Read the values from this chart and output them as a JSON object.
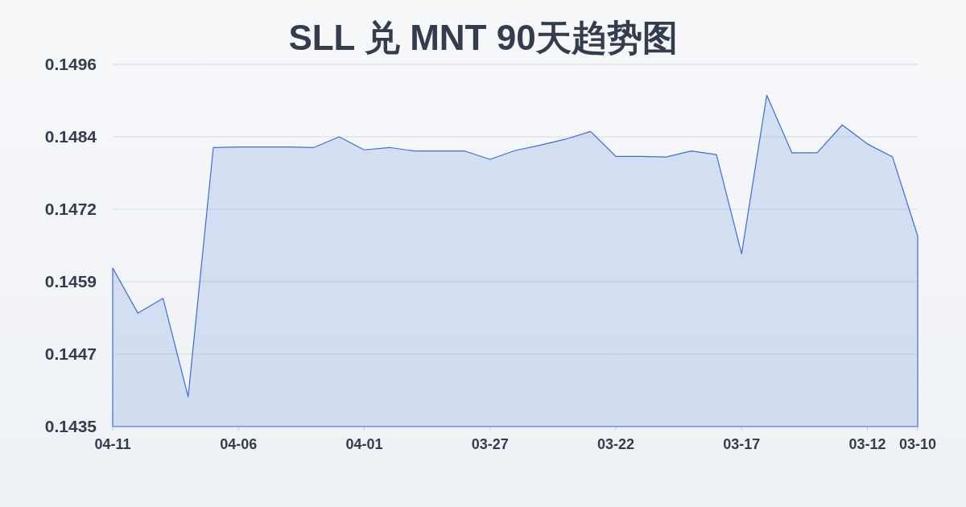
{
  "chart_data": {
    "type": "area",
    "title": "SLL 兑 MNT 90天趋势图",
    "categories": [
      "04-11",
      null,
      null,
      null,
      null,
      "04-06",
      null,
      null,
      null,
      null,
      "04-01",
      null,
      null,
      null,
      null,
      "03-27",
      null,
      null,
      null,
      null,
      "03-22",
      null,
      null,
      null,
      null,
      "03-17",
      null,
      null,
      null,
      null,
      "03-12",
      null,
      "03-10"
    ],
    "series": [
      {
        "color": "#3b6fd6",
        "values": [
          0.14617,
          0.14541,
          0.14566,
          0.144,
          0.1482,
          0.14821,
          0.14821,
          0.14821,
          0.1482,
          0.14838,
          0.14816,
          0.1482,
          0.14814,
          0.14814,
          0.14814,
          0.148,
          0.14815,
          0.14824,
          0.14834,
          0.14847,
          0.14805,
          0.14805,
          0.14804,
          0.14814,
          0.14808,
          0.14641,
          0.14908,
          0.14811,
          0.14811,
          0.14858,
          0.14826,
          0.14804,
          0.14671
        ]
      }
    ],
    "ylim": [
      0.1435,
      0.1496
    ],
    "yticks": [
      0.1435,
      {
        "value": 0.14472,
        "label": "0.1447"
      },
      {
        "value": 0.14594,
        "label": "0.1459"
      },
      {
        "value": 0.14716,
        "label": "0.1472"
      },
      {
        "value": 0.14838,
        "label": "0.1484"
      },
      0.1496
    ],
    "grid": "y"
  }
}
